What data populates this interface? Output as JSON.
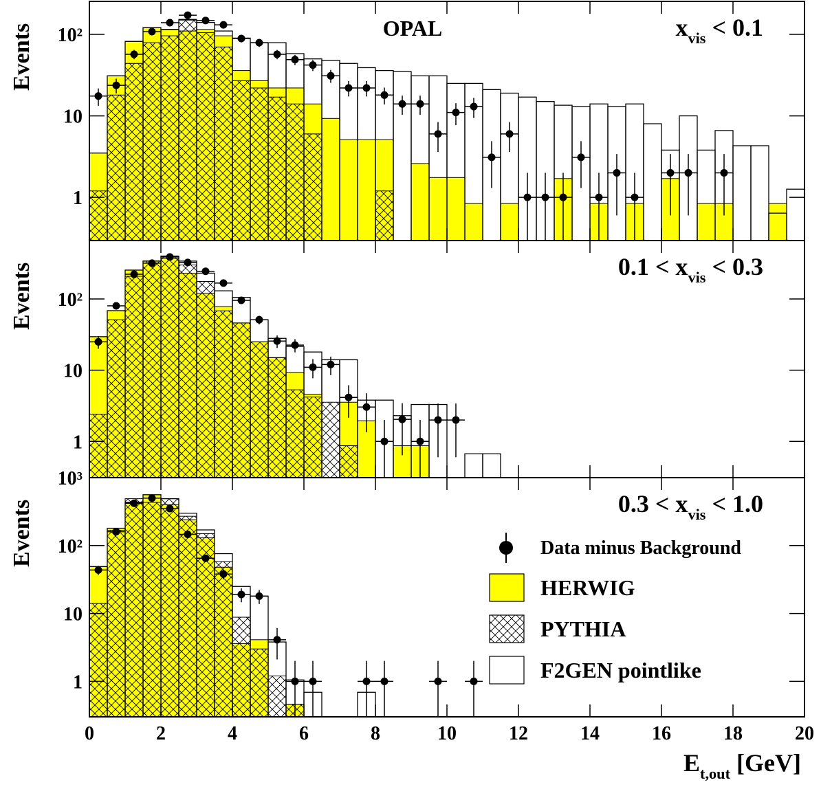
{
  "chart_data": [
    {
      "type": "histogram",
      "ylabel": "Events",
      "annotation": "OPAL",
      "panel_label": {
        "pre": "x",
        "sub": "vis",
        "post": " < 0.1"
      },
      "xlim": [
        0,
        20
      ],
      "ylim": [
        0.295,
        254
      ],
      "log_y": true,
      "yticks": [
        1,
        10,
        {
          "value": 100,
          "label": "10²"
        }
      ],
      "bins": [
        0,
        0.5,
        1,
        1.5,
        2,
        2.5,
        3,
        3.5,
        4,
        4.5,
        5,
        5.5,
        6,
        6.5,
        7,
        7.5,
        8,
        8.5,
        9,
        9.5,
        10,
        10.5,
        11,
        11.5,
        12,
        12.5,
        13,
        13.5,
        14,
        14.5,
        15,
        15.5,
        16,
        16.5,
        17,
        17.5,
        18,
        18.5,
        19,
        19.5,
        20
      ],
      "series": [
        {
          "style": "filled",
          "color": "#ffff00",
          "values": [
            3.5,
            31,
            82,
            121,
            114,
            110,
            115,
            96,
            36,
            27,
            22,
            22,
            14,
            9.3,
            5.1,
            5.1,
            5.1,
            null,
            2.6,
            1.75,
            1.75,
            0.84,
            null,
            0.84,
            null,
            null,
            1.7,
            null,
            0.84,
            null,
            0.84,
            null,
            1.7,
            null,
            0.84,
            0.84,
            null,
            null,
            0.84,
            null
          ]
        },
        {
          "style": "hatched",
          "color": "#000000",
          "values": [
            1.2,
            18,
            44,
            79,
            96,
            153,
            105,
            70,
            27,
            22,
            17,
            14,
            6,
            null,
            null,
            null,
            1.2,
            null,
            null,
            null,
            null,
            null,
            null,
            null,
            null,
            null,
            null,
            null,
            null,
            null,
            null,
            null,
            null,
            null,
            null,
            null,
            null,
            null,
            null,
            null
          ]
        },
        {
          "style": "outline",
          "color": "#000000",
          "values": [
            3.5,
            31,
            82,
            121,
            115,
            150,
            140,
            110,
            90,
            79,
            79,
            58,
            50,
            48,
            44,
            39,
            36,
            35,
            31,
            31,
            25,
            25,
            21,
            19,
            17,
            15,
            13.5,
            13,
            14,
            13,
            14,
            8,
            3.8,
            10,
            3.8,
            6.6,
            4.3,
            4.3,
            0.64,
            1.26
          ]
        }
      ],
      "data": {
        "color": "#000000",
        "x": [
          0.25,
          0.75,
          1.25,
          1.75,
          2.25,
          2.75,
          3.25,
          3.75,
          4.25,
          4.75,
          5.25,
          5.75,
          6.25,
          6.75,
          7.25,
          7.75,
          8.25,
          8.75,
          9.25,
          9.75,
          10.25,
          10.75,
          11.25,
          11.75,
          12.25,
          12.75,
          13.25,
          13.75,
          14.25,
          14.75,
          15.25,
          16.25,
          16.75,
          17.75
        ],
        "values": [
          17.5,
          23.7,
          57,
          108,
          139,
          172,
          148,
          131,
          89,
          79,
          57,
          49,
          42,
          31,
          22,
          22,
          18,
          14,
          14,
          6,
          11,
          13,
          3.1,
          6,
          1,
          1,
          1,
          3.1,
          1,
          2,
          1,
          2,
          2,
          2
        ],
        "errors": [
          4.2,
          4.9,
          7.5,
          10.4,
          11.8,
          13.1,
          12.2,
          11.4,
          9.4,
          8.9,
          7.5,
          7,
          6.5,
          5.6,
          4.7,
          4.7,
          4.2,
          3.7,
          3.7,
          2.4,
          3.3,
          3.6,
          1.8,
          2.4,
          1,
          1,
          1,
          1.8,
          1,
          1.4,
          1,
          1.4,
          1.4,
          1.4
        ]
      }
    },
    {
      "type": "histogram",
      "ylabel": "Events",
      "panel_label": {
        "pre": "0.1 < x",
        "sub": "vis",
        "post": " < 0.3"
      },
      "xlim": [
        0,
        20
      ],
      "ylim": [
        0.31,
        660
      ],
      "log_y": true,
      "yticks": [
        1,
        10,
        {
          "value": 100,
          "label": "10²"
        }
      ],
      "bins": [
        0,
        0.5,
        1,
        1.5,
        2,
        2.5,
        3,
        3.5,
        4,
        4.5,
        5,
        5.5,
        6,
        6.5,
        7,
        7.5,
        8,
        8.5,
        9,
        9.5,
        10,
        10.5,
        11,
        11.5,
        12,
        12.5,
        13,
        13.5,
        14,
        14.5,
        15,
        15.5,
        16,
        16.5,
        17,
        17.5,
        18,
        18.5,
        19,
        19.5,
        20
      ],
      "series": [
        {
          "style": "filled",
          "color": "#ffff00",
          "values": [
            29.5,
            68.5,
            254,
            340,
            370,
            230,
            120,
            78,
            46,
            25,
            15,
            9.3,
            4.6,
            null,
            3.55,
            1.95,
            null,
            0.87,
            0.87,
            null,
            null,
            null,
            null,
            null,
            null,
            null,
            null,
            null,
            null,
            null,
            null,
            null,
            null,
            null,
            null,
            null,
            null,
            null,
            null,
            null
          ]
        },
        {
          "style": "hatched",
          "color": "#000000",
          "values": [
            2.4,
            51,
            208,
            340,
            400,
            300,
            176,
            68,
            46,
            25,
            15,
            5.3,
            4.2,
            3.55,
            0.87,
            null,
            null,
            null,
            null,
            null,
            null,
            null,
            null,
            null,
            null,
            null,
            null,
            null,
            null,
            null,
            null,
            null,
            null,
            null,
            null,
            null,
            null,
            null,
            null,
            null
          ]
        },
        {
          "style": "outline",
          "color": "#000000",
          "values": [
            29.5,
            68.5,
            254,
            340,
            400,
            340,
            230,
            130,
            105,
            51,
            28,
            21.5,
            18,
            14,
            14,
            3.8,
            3.8,
            2.3,
            3.3,
            3.3,
            null,
            0.67,
            0.67,
            null,
            null,
            null,
            null,
            null,
            null,
            null,
            null,
            null,
            null,
            null,
            null,
            null,
            null,
            null,
            null,
            null
          ]
        }
      ],
      "data": {
        "color": "#000000",
        "x": [
          0.25,
          0.75,
          1.25,
          1.75,
          2.25,
          2.75,
          3.25,
          3.75,
          4.25,
          4.75,
          5.25,
          5.75,
          6.25,
          6.75,
          7.25,
          7.75,
          8.25,
          8.75,
          9.25,
          9.75,
          10.25
        ],
        "values": [
          25,
          80,
          222,
          318,
          388,
          325,
          244,
          167,
          95.5,
          51,
          25.6,
          22.5,
          11,
          12,
          4.15,
          3.04,
          1,
          2.04,
          1,
          2,
          2
        ],
        "errors": [
          5,
          8.9,
          14.9,
          17.8,
          19.7,
          18,
          15.6,
          12.9,
          9.8,
          7.1,
          5.1,
          4.7,
          3.3,
          3.5,
          2,
          1.7,
          1,
          1.4,
          1,
          1.4,
          1.4
        ]
      }
    },
    {
      "type": "histogram",
      "ylabel": "Events",
      "panel_label": {
        "pre": "0.3 < x",
        "sub": "vis",
        "post": " < 1.0"
      },
      "xlabel": {
        "pre": "E",
        "sub": "t,out",
        "post": "  [GeV]"
      },
      "xlim": [
        0,
        20
      ],
      "ylim": [
        0.3,
        1000
      ],
      "log_y": true,
      "xticks": [
        0,
        2,
        4,
        6,
        8,
        10,
        12,
        14,
        16,
        18,
        20
      ],
      "yticks": [
        1,
        10,
        {
          "value": 100,
          "label": "10²"
        },
        {
          "value": 1000,
          "label": "10³"
        }
      ],
      "legend": "lower right",
      "bins": [
        0,
        0.5,
        1,
        1.5,
        2,
        2.5,
        3,
        3.5,
        4,
        4.5,
        5,
        5.5,
        6,
        6.5,
        7,
        7.5,
        8,
        8.5,
        9,
        9.5,
        10,
        10.5,
        11,
        11.5,
        12,
        12.5,
        13,
        13.5,
        14,
        14.5,
        15,
        15.5,
        16,
        16.5,
        17,
        17.5,
        18,
        18.5,
        19,
        19.5,
        20
      ],
      "series": [
        {
          "name": "HERWIG",
          "style": "filled",
          "color": "#ffff00",
          "values": [
            49,
            180,
            433,
            560,
            400,
            240,
            130,
            48,
            3.6,
            4.1,
            null,
            0.46,
            null,
            null,
            null,
            null,
            null,
            null,
            null,
            null,
            null,
            null,
            null,
            null,
            null,
            null,
            null,
            null,
            null,
            null,
            null,
            null,
            null,
            null,
            null,
            null,
            null,
            null,
            null,
            null
          ]
        },
        {
          "name": "PYTHIA",
          "style": "hatched",
          "color": "#000000",
          "values": [
            14,
            168,
            490,
            433,
            490,
            270,
            150,
            58,
            8.8,
            3,
            1.2,
            0.46,
            null,
            null,
            null,
            null,
            null,
            null,
            null,
            null,
            null,
            null,
            null,
            null,
            null,
            null,
            null,
            null,
            null,
            null,
            null,
            null,
            null,
            null,
            null,
            null,
            null,
            null,
            null,
            null
          ]
        },
        {
          "name": "F2GEN pointlike",
          "style": "outline",
          "color": "#000000",
          "values": [
            49,
            180,
            433,
            560,
            490,
            300,
            170,
            76,
            25,
            18,
            3.8,
            1.05,
            0.69,
            null,
            null,
            0.69,
            null,
            null,
            null,
            null,
            null,
            null,
            null,
            null,
            null,
            null,
            null,
            null,
            null,
            null,
            null,
            null,
            null,
            null,
            null,
            null,
            null,
            null,
            null,
            null
          ]
        }
      ],
      "data": {
        "name": "Data minus Background",
        "color": "#000000",
        "x": [
          0.25,
          0.75,
          1.25,
          1.75,
          2.25,
          2.75,
          3.25,
          3.75,
          4.25,
          4.75,
          5.25,
          5.75,
          6.25,
          7.75,
          8.25,
          9.75,
          10.75
        ],
        "values": [
          43.6,
          160,
          420,
          500,
          350,
          146,
          65,
          38,
          19,
          18,
          4.1,
          1,
          1,
          1,
          1,
          1,
          1
        ],
        "errors": [
          6.6,
          12.6,
          20.5,
          22.4,
          18.7,
          12.1,
          8.1,
          6.2,
          4.4,
          4.2,
          2,
          1,
          1,
          1,
          1,
          1,
          1
        ]
      }
    }
  ]
}
